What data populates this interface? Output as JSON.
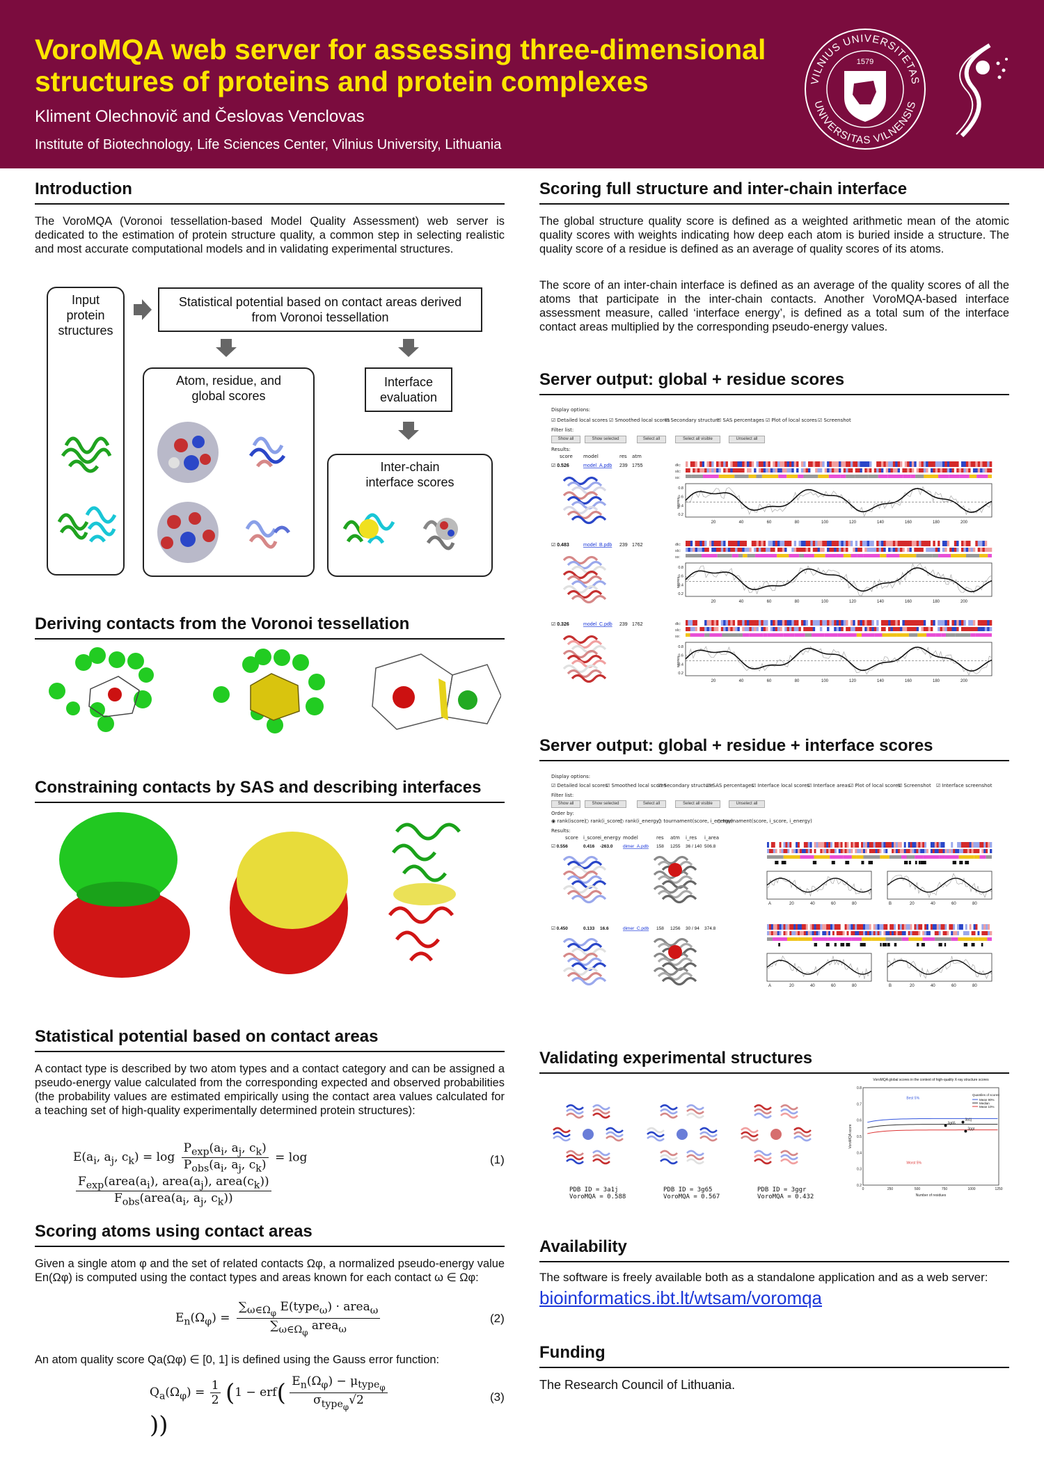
{
  "header": {
    "title_line1": "VoroMQA web server for assessing three-dimensional",
    "title_line2": "structures of proteins and protein complexes",
    "authors": "Kliment Olechnovič and Česlovas Venclovas",
    "institute": "Institute of Biotechnology, Life Sciences Center, Vilnius University, Lithuania",
    "seal_text_top": "VILNIUS UNIVERSITETAS",
    "seal_text_bottom": "UNIVERSITAS VILNENSIS",
    "seal_year": "1579"
  },
  "intro": {
    "title": "Introduction",
    "text": "The VoroMQA (Voronoi tessellation-based Model Quality Assessment) web server is dedicated to the estimation of protein structure quality, a common step in selecting realistic and most accurate computational models and in validating experimental structures.",
    "flow": {
      "input": "Input protein structures",
      "potential": "Statistical potential based on contact areas derived from Voronoi tessellation",
      "scores": "Atom, residue, and global scores",
      "interface_eval": "Interface evaluation",
      "interchain": "Inter-chain interface scores"
    }
  },
  "deriving": {
    "title": "Deriving contacts from the Voronoi tessellation"
  },
  "constraining": {
    "title": "Constraining contacts by SAS and describing interfaces"
  },
  "statpot": {
    "title": "Statistical potential based on contact areas",
    "text": "A contact type is described by two atom types and a contact category and can be assigned a pseudo-energy value calculated from the corresponding expected and observed probabilities (the probability values are estimated empirically using the contact area values calculated for a teaching set of high-quality experimentally determined protein structures):",
    "eq_number": "(1)"
  },
  "scoring_atoms": {
    "title": "Scoring atoms using contact areas",
    "text": "Given a single atom φ and the set of related contacts Ωφ, a normalized pseudo-energy value En(Ωφ) is computed using the contact types and areas known for each contact ω ∈ Ωφ:",
    "eq2_number": "(2)",
    "text2": "An atom quality score Qa(Ωφ) ∈ [0, 1] is defined using the Gauss error function:",
    "eq3_number": "(3)"
  },
  "scoring_full": {
    "title": "Scoring full structure and inter-chain interface",
    "text1": "The global structure quality score is defined as a weighted arithmetic mean of the atomic quality scores with weights indicating how deep each atom is buried inside a structure. The quality score of a residue is defined as an average of quality scores of its atoms.",
    "text2": "The score of an inter-chain interface is defined as an average of the quality scores of all the atoms that participate in the inter-chain contacts. Another VoroMQA-based interface assessment measure, called ‘interface energy’, is defined as a total sum of the interface contact areas multiplied by the corresponding pseudo-energy values."
  },
  "server_out1": {
    "title": "Server output: global + residue scores",
    "display_options": "Display options:",
    "options": [
      "Detailed local scores",
      "Smoothed local scores",
      "Secondary structure",
      "SAS percentages",
      "Plot of local scores",
      "Screenshot"
    ],
    "filter_list": "Filter list:",
    "buttons": [
      "Show all",
      "Show selected",
      "Select all",
      "Select all visible",
      "Unselect all"
    ],
    "results": "Results:",
    "columns": [
      "score",
      "model",
      "res",
      "atm"
    ],
    "rows": [
      {
        "score": "0.526",
        "model": "model_A.pdb",
        "res": "239",
        "atm": "1755"
      },
      {
        "score": "0.483",
        "model": "model_B.pdb",
        "res": "239",
        "atm": "1762"
      },
      {
        "score": "0.326",
        "model": "model_C.pdb",
        "res": "239",
        "atm": "1762"
      }
    ],
    "x_ticks": [
      "20",
      "40",
      "60",
      "80",
      "100",
      "120",
      "140",
      "160",
      "180",
      "200"
    ],
    "y_ticks": [
      "0.8",
      "0.6",
      "0.4",
      "0.2"
    ],
    "ylabel": "scores",
    "track_labels": [
      "dlc",
      "slc",
      "ss"
    ]
  },
  "server_out2": {
    "title": "Server output: global + residue + interface scores",
    "display_options": "Display options:",
    "options": [
      "Detailed local scores",
      "Smoothed local scores",
      "Secondary structure",
      "SAS percentages",
      "Interface local scores",
      "Interface areas",
      "Plot of local scores",
      "Screenshot",
      "Interface screenshot"
    ],
    "filter_list": "Filter list:",
    "buttons": [
      "Show all",
      "Show selected",
      "Select all",
      "Select all visible",
      "Unselect all"
    ],
    "order_by": "Order by:",
    "order_options": [
      "rank(iscore)",
      "rank(i_score)",
      "rank(i_energy)",
      "tournament(score, i_energy)",
      "tournament(score, i_score, i_energy)"
    ],
    "results": "Results:",
    "columns": [
      "score",
      "i_score",
      "i_energy",
      "model",
      "res",
      "atm",
      "i_res",
      "i_area"
    ],
    "rows": [
      {
        "score": "0.556",
        "i_score": "0.416",
        "i_energy": "-263.0",
        "model": "dimer_A.pdb",
        "res": "158",
        "atm": "1255",
        "i_res": "36 / 140",
        "i_area": "506.8"
      },
      {
        "score": "0.450",
        "i_score": "0.133",
        "i_energy": "16.6",
        "model": "dimer_C.pdb",
        "res": "158",
        "atm": "1256",
        "i_res": "30 / 94",
        "i_area": "374.8"
      }
    ],
    "chain_ticks_A": [
      "A",
      "20",
      "40",
      "60",
      "80"
    ],
    "chain_ticks_B": [
      "B",
      "20",
      "40",
      "60",
      "80"
    ]
  },
  "validating": {
    "title": "Validating experimental structures",
    "captions": [
      {
        "pdb": "PDB ID = 3a1j",
        "score": "VoroMQA = 0.588"
      },
      {
        "pdb": "PDB ID = 3g65",
        "score": "VoroMQA = 0.567"
      },
      {
        "pdb": "PDB ID = 3ggr",
        "score": "VoroMQA = 0.432"
      }
    ],
    "chart_title": "VoroMQA global scores in the context of high-quality X-ray structure scores",
    "chart_labels": [
      "3a1j",
      "3g65",
      "3ggr"
    ],
    "legend_title": "Quantiles of scores:",
    "legend": [
      "Mean 90%",
      "Median",
      "Mean 10%"
    ],
    "band_top": "Best 5%",
    "band_bottom": "Worst 5%",
    "xlabel": "Number of residues",
    "ylabel": "VoroMQA score",
    "x_ticks": [
      "0",
      "250",
      "500",
      "750",
      "1000",
      "1250"
    ],
    "y_ticks": [
      "0.8",
      "0.7",
      "0.6",
      "0.5",
      "0.4",
      "0.3",
      "0.2"
    ]
  },
  "availability": {
    "title": "Availability",
    "text": "The software is freely available both as a standalone application and as a web server:",
    "link": "bioinformatics.ibt.lt/wtsam/voromqa"
  },
  "funding": {
    "title": "Funding",
    "text": "The Research Council of Lithuania."
  },
  "colors": {
    "header_bg": "#7b0c3e",
    "title_yellow": "#ffe600",
    "link_blue": "#1a36d9"
  }
}
